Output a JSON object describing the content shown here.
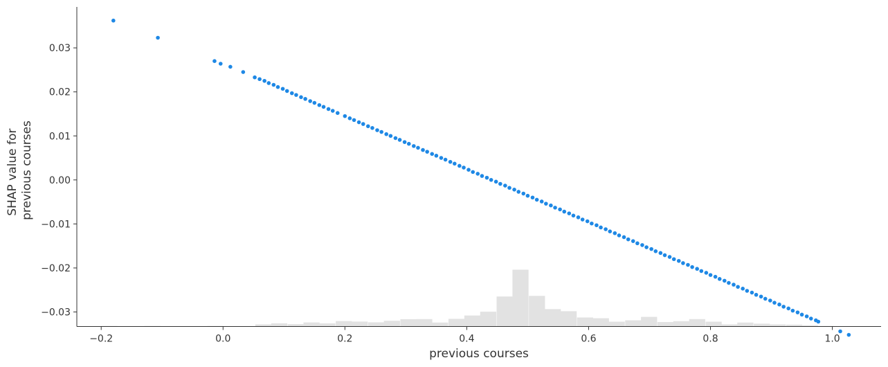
{
  "chart_data": {
    "type": "scatter",
    "title": "",
    "xlabel": "previous courses",
    "ylabel": [
      "SHAP value for",
      "previous courses"
    ],
    "xlim": [
      -0.24,
      1.08
    ],
    "ylim": [
      -0.0333,
      0.0393
    ],
    "x_ticks": [
      {
        "value": -0.2,
        "label": "−0.2"
      },
      {
        "value": 0.0,
        "label": "0.0"
      },
      {
        "value": 0.2,
        "label": "0.2"
      },
      {
        "value": 0.4,
        "label": "0.4"
      },
      {
        "value": 0.6,
        "label": "0.6"
      },
      {
        "value": 0.8,
        "label": "0.8"
      },
      {
        "value": 1.0,
        "label": "1.0"
      }
    ],
    "y_ticks": [
      {
        "value": 0.03,
        "label": "0.03"
      },
      {
        "value": 0.02,
        "label": "0.02"
      },
      {
        "value": 0.01,
        "label": "0.01"
      },
      {
        "value": 0.0,
        "label": "0.00"
      },
      {
        "value": -0.01,
        "label": "−0.01"
      },
      {
        "value": -0.02,
        "label": "−0.02"
      },
      {
        "value": -0.03,
        "label": "−0.03"
      }
    ],
    "grid": false,
    "point_color": "#1E88E5",
    "histogram_color": "#e2e2e2",
    "points": {
      "x": [
        -0.18,
        -0.107,
        -0.014,
        -0.004,
        0.012,
        0.033,
        0.052,
        0.06,
        0.068,
        0.075,
        0.083,
        0.09,
        0.098,
        0.105,
        0.113,
        0.12,
        0.128,
        0.135,
        0.143,
        0.15,
        0.158,
        0.165,
        0.173,
        0.18,
        0.188,
        0.2,
        0.208,
        0.215,
        0.223,
        0.23,
        0.238,
        0.245,
        0.253,
        0.26,
        0.268,
        0.275,
        0.283,
        0.29,
        0.298,
        0.305,
        0.313,
        0.32,
        0.328,
        0.335,
        0.343,
        0.35,
        0.358,
        0.365,
        0.373,
        0.38,
        0.388,
        0.395,
        0.403,
        0.41,
        0.418,
        0.425,
        0.433,
        0.44,
        0.448,
        0.455,
        0.463,
        0.47,
        0.478,
        0.485,
        0.493,
        0.5,
        0.508,
        0.515,
        0.523,
        0.53,
        0.538,
        0.545,
        0.553,
        0.56,
        0.568,
        0.575,
        0.583,
        0.59,
        0.598,
        0.605,
        0.613,
        0.62,
        0.628,
        0.635,
        0.643,
        0.65,
        0.658,
        0.665,
        0.673,
        0.68,
        0.688,
        0.695,
        0.703,
        0.71,
        0.718,
        0.725,
        0.733,
        0.74,
        0.748,
        0.755,
        0.763,
        0.77,
        0.778,
        0.785,
        0.793,
        0.8,
        0.808,
        0.815,
        0.823,
        0.83,
        0.838,
        0.845,
        0.853,
        0.86,
        0.868,
        0.875,
        0.883,
        0.89,
        0.898,
        0.905,
        0.913,
        0.92,
        0.928,
        0.935,
        0.943,
        0.95,
        0.958,
        0.965,
        0.973,
        0.977,
        1.013,
        1.027
      ],
      "y": [
        0.0362,
        0.0323,
        0.027,
        0.0264,
        0.0257,
        0.0245,
        0.0233,
        0.0229,
        0.0225,
        0.022,
        0.0216,
        0.0211,
        0.0207,
        0.0202,
        0.0197,
        0.0193,
        0.0188,
        0.0184,
        0.0179,
        0.0175,
        0.017,
        0.0166,
        0.0161,
        0.0157,
        0.0152,
        0.0145,
        0.014,
        0.0136,
        0.0131,
        0.0127,
        0.0122,
        0.0118,
        0.0113,
        0.0109,
        0.0104,
        0.01,
        0.0095,
        0.0091,
        0.0086,
        0.0082,
        0.0077,
        0.0073,
        0.0068,
        0.0064,
        0.0059,
        0.0055,
        0.005,
        0.0046,
        0.0041,
        0.0037,
        0.0032,
        0.0028,
        0.0023,
        0.0018,
        0.0014,
        0.0009,
        0.0005,
        0.0,
        -0.0004,
        -0.0009,
        -0.0013,
        -0.0018,
        -0.0022,
        -0.0027,
        -0.0031,
        -0.0036,
        -0.004,
        -0.0045,
        -0.0049,
        -0.0054,
        -0.0058,
        -0.0063,
        -0.0067,
        -0.0072,
        -0.0076,
        -0.0081,
        -0.0085,
        -0.009,
        -0.0094,
        -0.0099,
        -0.0103,
        -0.0108,
        -0.0112,
        -0.0117,
        -0.0121,
        -0.0126,
        -0.013,
        -0.0135,
        -0.0139,
        -0.0144,
        -0.0148,
        -0.0153,
        -0.0157,
        -0.0162,
        -0.0166,
        -0.0171,
        -0.0175,
        -0.018,
        -0.0184,
        -0.0189,
        -0.0193,
        -0.0198,
        -0.0202,
        -0.0207,
        -0.0211,
        -0.0216,
        -0.022,
        -0.0225,
        -0.0229,
        -0.0234,
        -0.0238,
        -0.0243,
        -0.0247,
        -0.0252,
        -0.0256,
        -0.0261,
        -0.0265,
        -0.027,
        -0.0274,
        -0.0279,
        -0.0283,
        -0.0288,
        -0.0292,
        -0.0297,
        -0.0301,
        -0.0306,
        -0.031,
        -0.0315,
        -0.0319,
        -0.0322,
        -0.0344,
        -0.0352
      ]
    },
    "histogram": {
      "bin_width": 0.0264,
      "bins_x": [
        -0.2,
        -0.129,
        -0.026,
        0.053,
        0.079,
        0.106,
        0.132,
        0.158,
        0.185,
        0.211,
        0.238,
        0.264,
        0.291,
        0.317,
        0.343,
        0.37,
        0.396,
        0.422,
        0.449,
        0.475,
        0.502,
        0.528,
        0.554,
        0.581,
        0.607,
        0.633,
        0.66,
        0.686,
        0.713,
        0.739,
        0.765,
        0.792,
        0.818,
        0.844,
        0.871,
        0.897,
        0.924,
        0.95,
        0.976
      ],
      "bins_height": [
        0.4,
        0.4,
        0.4,
        1.7,
        2.6,
        1.9,
        3.3,
        2.5,
        4.4,
        4.0,
        3.4,
        4.6,
        5.9,
        6.0,
        3.2,
        6.2,
        8.9,
        12.0,
        24.3,
        46.0,
        24.8,
        14.1,
        12.4,
        7.3,
        6.7,
        3.9,
        5.0,
        7.8,
        3.6,
        4.3,
        6.0,
        3.9,
        1.7,
        3.2,
        2.3,
        1.7,
        1.5,
        0.9,
        0.4
      ],
      "max_height": 46.0
    }
  }
}
